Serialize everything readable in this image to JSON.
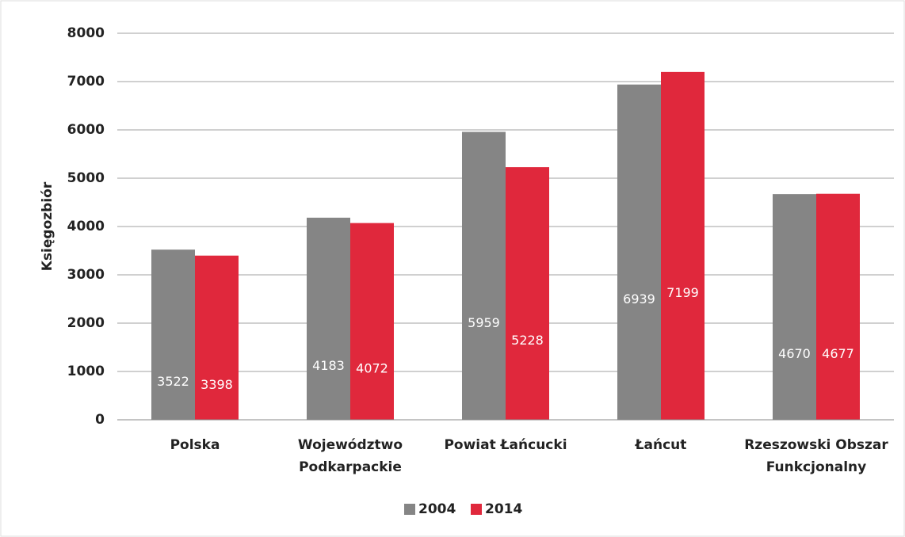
{
  "chart_data": {
    "type": "bar",
    "ylabel": "Księgozbiór",
    "categories": [
      "Polska",
      "Województwo Podkarpackie",
      "Powiat Łańcucki",
      "Łańcut",
      "Rzeszowski Obszar Funkcjonalny"
    ],
    "series": [
      {
        "name": "2004",
        "color": "#858585",
        "values": [
          3522,
          4183,
          5959,
          6939,
          4670
        ]
      },
      {
        "name": "2014",
        "color": "#e0283c",
        "values": [
          3398,
          4072,
          5228,
          7199,
          4677
        ]
      }
    ],
    "ylim": [
      0,
      8000
    ],
    "yticks": [
      0,
      1000,
      2000,
      3000,
      4000,
      5000,
      6000,
      7000,
      8000
    ],
    "grid": true,
    "legend": "bottom"
  }
}
